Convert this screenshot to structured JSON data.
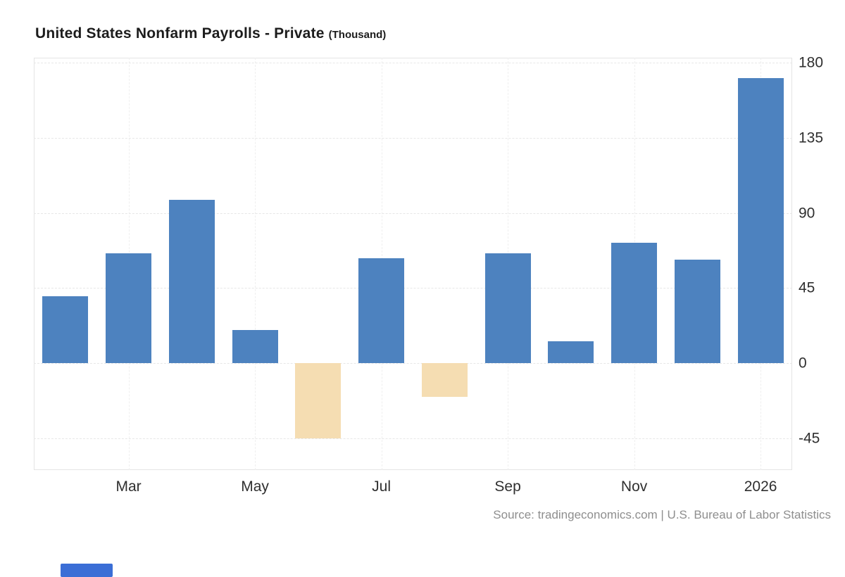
{
  "title": "United States Nonfarm Payrolls - Private",
  "title_suffix": "(Thousand)",
  "source": "Source: tradingeconomics.com | U.S. Bureau of Labor Statistics",
  "colors": {
    "positive_bar": "#4d82bf",
    "negative_bar": "#f5ddb2",
    "grid": "#e7e7e7",
    "axis_text": "#2f2f2f",
    "source_text": "#8e8e8e",
    "bottom_strip": "#3b6ed6"
  },
  "chart_data": {
    "type": "bar",
    "title": "United States Nonfarm Payrolls - Private (Thousand)",
    "categories": [
      "",
      "Mar",
      "",
      "May",
      "",
      "Jul",
      "",
      "Sep",
      "",
      "Nov",
      "",
      "2026"
    ],
    "values": [
      40,
      66,
      98,
      20,
      -45,
      63,
      -20,
      66,
      13,
      72,
      62,
      171
    ],
    "x_tick_labels": [
      {
        "index": 1,
        "label": "Mar"
      },
      {
        "index": 3,
        "label": "May"
      },
      {
        "index": 5,
        "label": "Jul"
      },
      {
        "index": 7,
        "label": "Sep"
      },
      {
        "index": 9,
        "label": "Nov"
      },
      {
        "index": 11,
        "label": "2026"
      }
    ],
    "y_ticks": [
      180,
      135,
      90,
      45,
      0,
      -45
    ],
    "ylim": [
      -64,
      183
    ],
    "xlabel": "",
    "ylabel": "",
    "grid": true,
    "legend": "none",
    "y_axis_position": "right"
  }
}
